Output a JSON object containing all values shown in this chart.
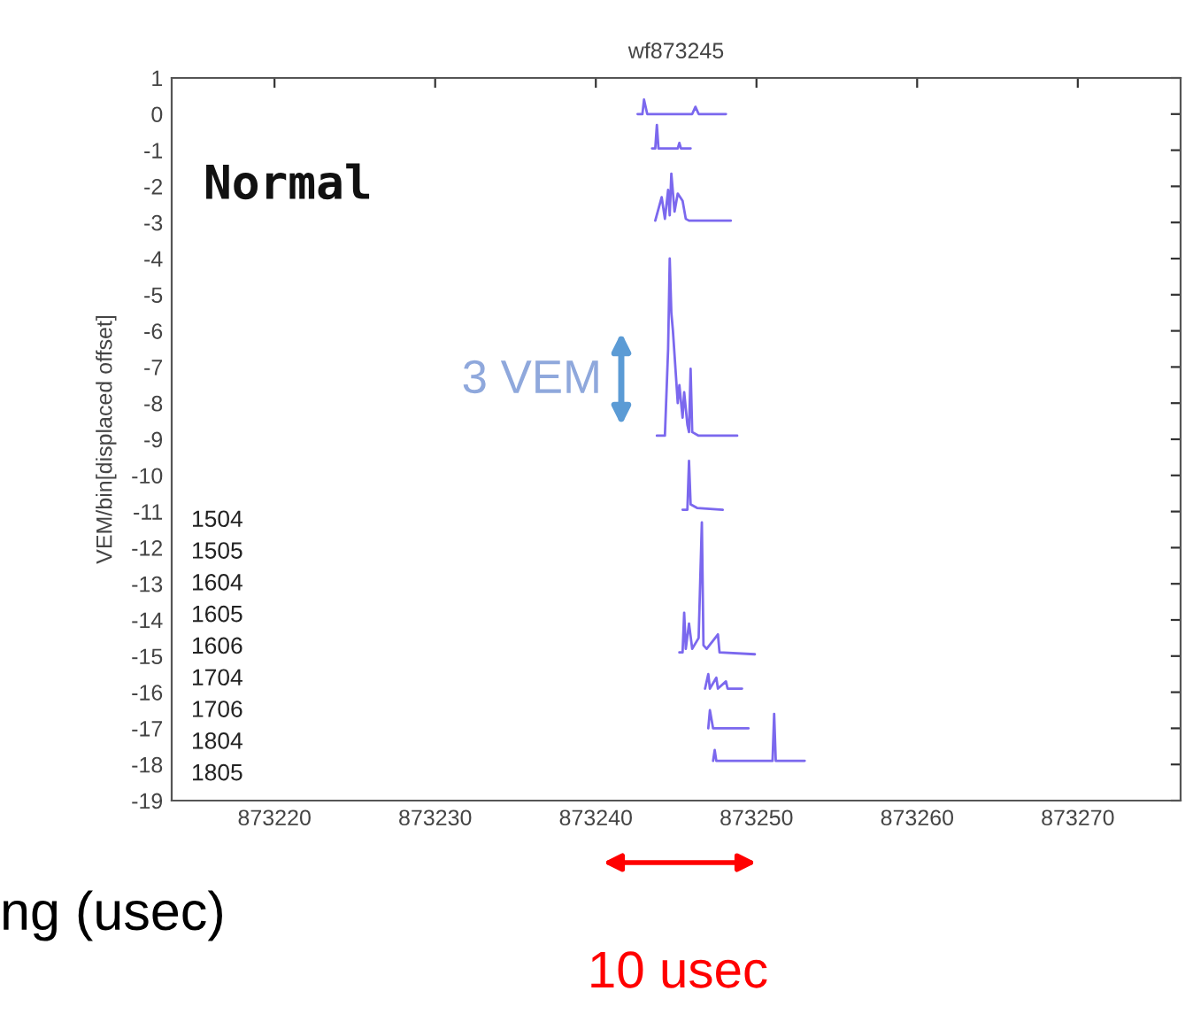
{
  "chart_data": {
    "type": "line",
    "title": "wf873245",
    "ylabel": "VEM/bin[displaced offset]",
    "xlim": [
      873213.6,
      873276.4
    ],
    "xticks": [
      873220,
      873230,
      873240,
      873250,
      873260,
      873270
    ],
    "ylim": [
      -19,
      1
    ],
    "yticks": [
      1,
      0,
      -1,
      -2,
      -3,
      -4,
      -5,
      -6,
      -7,
      -8,
      -9,
      -10,
      -11,
      -12,
      -13,
      -14,
      -15,
      -16,
      -17,
      -18,
      -19
    ],
    "grid": false,
    "legend": false,
    "marker": "none",
    "line_style": "solid",
    "series": [
      {
        "color": "#7b68ee",
        "x": [
          873242.6,
          873242.9,
          873243.0,
          873243.2,
          873244.0,
          873246.0,
          873246.2,
          873246.4,
          873248.1
        ],
        "values": [
          0,
          0,
          0.4,
          0,
          0,
          0,
          0.2,
          0,
          0
        ]
      },
      {
        "color": "#7b68ee",
        "x": [
          873243.5,
          873243.7,
          873243.8,
          873243.9,
          873244.4,
          873245.1,
          873245.2,
          873245.3,
          873245.9
        ],
        "values": [
          -0.95,
          -0.95,
          -0.3,
          -0.95,
          -0.95,
          -0.95,
          -0.8,
          -0.95,
          -0.95
        ]
      },
      {
        "color": "#7b68ee",
        "x": [
          873243.7,
          873244.1,
          873244.3,
          873244.5,
          873244.6,
          873244.7,
          873244.9,
          873245.1,
          873245.4,
          873245.6,
          873245.8,
          873248.4
        ],
        "values": [
          -2.95,
          -2.3,
          -2.9,
          -2.1,
          -2.8,
          -1.65,
          -2.7,
          -2.2,
          -2.4,
          -2.9,
          -2.95,
          -2.95
        ]
      },
      {
        "color": "#7b68ee",
        "x": [
          873243.8,
          873244.3,
          873244.5,
          873244.6,
          873244.7,
          873244.8,
          873245.1,
          873245.2,
          873245.4,
          873245.5,
          873245.7,
          873245.8,
          873245.9,
          873246.0,
          873246.4,
          873248.8
        ],
        "values": [
          -8.9,
          -8.9,
          -6.5,
          -4.0,
          -5.5,
          -6.0,
          -8.0,
          -7.5,
          -8.4,
          -7.7,
          -8.6,
          -8.8,
          -7.05,
          -8.8,
          -8.9,
          -8.9
        ]
      },
      {
        "color": "#7b68ee",
        "x": [
          873245.4,
          873245.7,
          873245.8,
          873245.9,
          873246.3,
          873247.9
        ],
        "values": [
          -10.95,
          -10.95,
          -9.6,
          -10.8,
          -10.9,
          -10.95
        ]
      },
      {
        "color": "#7b68ee",
        "x": [
          873245.2,
          873245.4,
          873245.5,
          873245.6,
          873245.8,
          873246.0,
          873246.4,
          873246.6,
          873246.7,
          873246.9,
          873247.6,
          873247.7,
          873249.9
        ],
        "values": [
          -14.9,
          -14.9,
          -13.8,
          -14.8,
          -14.1,
          -14.8,
          -14.5,
          -11.3,
          -14.7,
          -14.8,
          -14.4,
          -14.9,
          -14.95
        ]
      },
      {
        "color": "#7b68ee",
        "x": [
          873246.8,
          873247.0,
          873247.1,
          873247.5,
          873247.6,
          873248.1,
          873248.2,
          873249.1
        ],
        "values": [
          -15.9,
          -15.5,
          -15.9,
          -15.6,
          -15.9,
          -15.7,
          -15.9,
          -15.9
        ]
      },
      {
        "color": "#7b68ee",
        "x": [
          873247.0,
          873247.1,
          873247.3,
          873249.5
        ],
        "values": [
          -17.0,
          -16.5,
          -17.0,
          -17.0
        ]
      },
      {
        "color": "#7b68ee",
        "x": [
          873247.3,
          873247.4,
          873247.5,
          873251.0,
          873251.1,
          873251.2,
          873253.0
        ],
        "values": [
          -17.9,
          -17.6,
          -17.9,
          -17.9,
          -16.6,
          -17.9,
          -17.9
        ]
      }
    ],
    "annotations": [
      "Normal",
      "3 VEM",
      "1504",
      "1505",
      "1604",
      "1605",
      "1606",
      "1704",
      "1706",
      "1804",
      "1805",
      "10 usec",
      "ng (usec)"
    ]
  }
}
